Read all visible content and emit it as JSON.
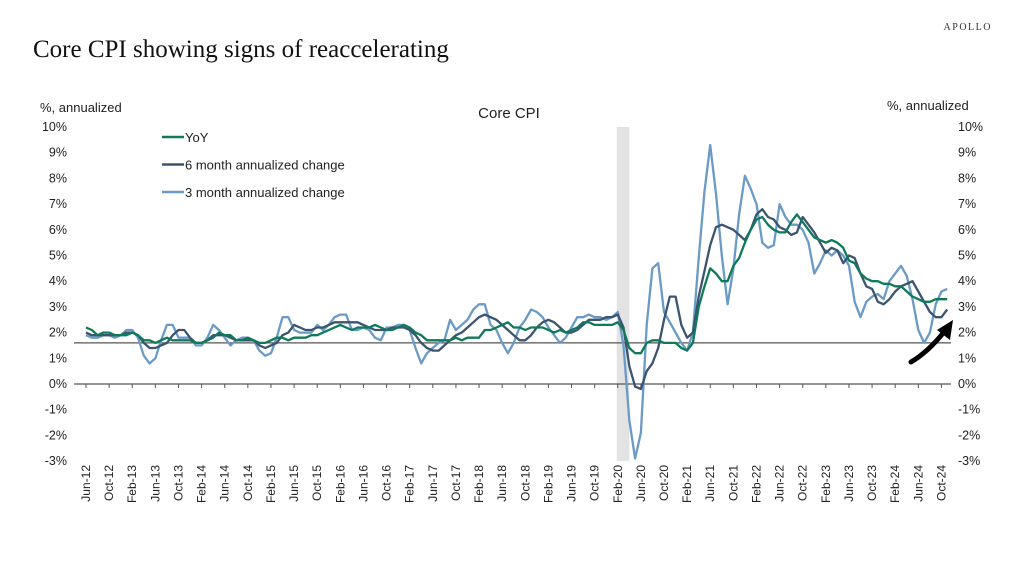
{
  "brand": "APOLLO",
  "page_title": "Core CPI showing signs of reaccelerating",
  "chart_data": {
    "type": "line",
    "title": "Core CPI",
    "ylabel_left": "%, annualized",
    "ylabel_right": "%, annualized",
    "ylim": [
      -3,
      10
    ],
    "yticks": [
      "-3%",
      "-2%",
      "-1%",
      "0%",
      "1%",
      "2%",
      "3%",
      "4%",
      "5%",
      "6%",
      "7%",
      "8%",
      "9%",
      "10%"
    ],
    "x_start": "Jun-12",
    "x_end": "Nov-24",
    "x_frequency": "monthly",
    "xtick_labels": [
      "Jun-12",
      "Oct-12",
      "Feb-13",
      "Jun-13",
      "Oct-13",
      "Feb-14",
      "Jun-14",
      "Oct-14",
      "Feb-15",
      "Jun-15",
      "Oct-15",
      "Feb-16",
      "Jun-16",
      "Oct-16",
      "Feb-17",
      "Jun-17",
      "Oct-17",
      "Feb-18",
      "Jun-18",
      "Oct-18",
      "Feb-19",
      "Jun-19",
      "Oct-19",
      "Feb-20",
      "Jun-20",
      "Oct-20",
      "Feb-21",
      "Jun-21",
      "Oct-21",
      "Feb-22",
      "Jun-22",
      "Oct-22",
      "Feb-23",
      "Jun-23",
      "Oct-23",
      "Feb-24",
      "Jun-24",
      "Oct-24"
    ],
    "legend_placement": "top-left",
    "grid": false,
    "reference_line": 1.6,
    "recession_shading": [
      "Feb-20",
      "Apr-20"
    ],
    "annotation": "upward black arrow near end of series",
    "series": [
      {
        "name": "YoY",
        "color": "#0f7a5a",
        "values": [
          2.2,
          2.1,
          1.9,
          2.0,
          2.0,
          1.9,
          1.9,
          1.9,
          2.0,
          1.9,
          1.7,
          1.7,
          1.6,
          1.7,
          1.8,
          1.7,
          1.7,
          1.7,
          1.7,
          1.6,
          1.6,
          1.7,
          1.8,
          2.0,
          1.9,
          1.9,
          1.7,
          1.7,
          1.8,
          1.7,
          1.6,
          1.6,
          1.7,
          1.8,
          1.8,
          1.7,
          1.8,
          1.8,
          1.8,
          1.9,
          1.9,
          2.0,
          2.1,
          2.2,
          2.3,
          2.2,
          2.1,
          2.2,
          2.2,
          2.2,
          2.3,
          2.2,
          2.1,
          2.1,
          2.2,
          2.3,
          2.2,
          2.0,
          1.9,
          1.7,
          1.7,
          1.7,
          1.7,
          1.7,
          1.8,
          1.7,
          1.8,
          1.8,
          1.8,
          2.1,
          2.1,
          2.2,
          2.3,
          2.4,
          2.2,
          2.2,
          2.1,
          2.2,
          2.2,
          2.2,
          2.1,
          2.0,
          2.1,
          2.0,
          2.1,
          2.2,
          2.4,
          2.4,
          2.3,
          2.3,
          2.3,
          2.3,
          2.4,
          2.1,
          1.4,
          1.2,
          1.2,
          1.6,
          1.7,
          1.7,
          1.6,
          1.6,
          1.6,
          1.4,
          1.3,
          1.6,
          3.0,
          3.8,
          4.5,
          4.3,
          4.0,
          4.0,
          4.6,
          4.9,
          5.5,
          6.0,
          6.4,
          6.5,
          6.2,
          6.0,
          5.9,
          5.9,
          6.3,
          6.6,
          6.3,
          6.0,
          5.7,
          5.6,
          5.5,
          5.6,
          5.5,
          5.3,
          4.8,
          4.7,
          4.3,
          4.1,
          4.0,
          4.0,
          3.9,
          3.9,
          3.8,
          3.8,
          3.6,
          3.4,
          3.3,
          3.2,
          3.2,
          3.3,
          3.3,
          3.3
        ]
      },
      {
        "name": "6 month annualized change",
        "color": "#3b5470",
        "values": [
          2.0,
          1.9,
          1.9,
          1.9,
          1.9,
          1.9,
          1.9,
          2.0,
          2.0,
          1.9,
          1.6,
          1.4,
          1.4,
          1.5,
          1.6,
          1.9,
          2.1,
          2.1,
          1.8,
          1.6,
          1.6,
          1.7,
          1.9,
          1.9,
          1.9,
          1.8,
          1.7,
          1.7,
          1.7,
          1.7,
          1.5,
          1.4,
          1.5,
          1.6,
          1.9,
          2.0,
          2.3,
          2.2,
          2.1,
          2.1,
          2.2,
          2.2,
          2.3,
          2.4,
          2.4,
          2.4,
          2.4,
          2.4,
          2.3,
          2.2,
          2.1,
          2.1,
          2.1,
          2.2,
          2.2,
          2.2,
          2.1,
          1.9,
          1.6,
          1.4,
          1.3,
          1.3,
          1.5,
          1.7,
          1.9,
          2.0,
          2.2,
          2.4,
          2.6,
          2.7,
          2.6,
          2.5,
          2.3,
          2.1,
          1.9,
          1.7,
          1.7,
          1.9,
          2.2,
          2.4,
          2.5,
          2.4,
          2.2,
          2.0,
          2.0,
          2.1,
          2.3,
          2.5,
          2.5,
          2.5,
          2.6,
          2.6,
          2.7,
          2.2,
          0.7,
          -0.1,
          -0.2,
          0.5,
          0.8,
          1.4,
          2.5,
          3.4,
          3.4,
          2.3,
          1.8,
          2.0,
          3.4,
          4.4,
          5.4,
          6.1,
          6.2,
          6.1,
          6.0,
          5.8,
          5.6,
          6.0,
          6.6,
          6.8,
          6.5,
          6.4,
          6.1,
          6.0,
          5.8,
          5.9,
          6.5,
          6.2,
          5.9,
          5.5,
          5.1,
          5.3,
          5.2,
          4.7,
          5.0,
          4.9,
          4.3,
          3.8,
          3.7,
          3.2,
          3.1,
          3.3,
          3.6,
          3.8,
          3.9,
          4.0,
          3.6,
          3.2,
          2.8,
          2.6,
          2.6,
          2.9
        ]
      },
      {
        "name": "3 month annualized change",
        "color": "#6b9ac6",
        "values": [
          1.9,
          1.8,
          1.8,
          1.9,
          1.9,
          1.8,
          1.9,
          2.1,
          2.1,
          1.8,
          1.1,
          0.8,
          1.0,
          1.7,
          2.3,
          2.3,
          1.8,
          1.8,
          1.8,
          1.5,
          1.5,
          1.8,
          2.3,
          2.1,
          1.8,
          1.5,
          1.7,
          1.8,
          1.8,
          1.7,
          1.3,
          1.1,
          1.2,
          1.8,
          2.6,
          2.6,
          2.1,
          2.0,
          2.0,
          2.0,
          2.3,
          2.1,
          2.3,
          2.6,
          2.7,
          2.7,
          2.1,
          2.1,
          2.2,
          2.1,
          1.8,
          1.7,
          2.2,
          2.2,
          2.3,
          2.3,
          2.1,
          1.4,
          0.8,
          1.2,
          1.4,
          1.6,
          1.7,
          2.5,
          2.1,
          2.3,
          2.5,
          2.9,
          3.1,
          3.1,
          2.3,
          2.1,
          1.6,
          1.2,
          1.6,
          2.2,
          2.5,
          2.9,
          2.8,
          2.6,
          2.2,
          1.9,
          1.6,
          1.8,
          2.2,
          2.6,
          2.6,
          2.7,
          2.6,
          2.6,
          2.5,
          2.6,
          2.8,
          1.5,
          -1.4,
          -2.9,
          -1.9,
          2.3,
          4.5,
          4.7,
          2.8,
          2.4,
          2.0,
          1.6,
          1.3,
          2.0,
          4.9,
          7.5,
          9.3,
          7.4,
          5.0,
          3.1,
          4.5,
          6.6,
          8.1,
          7.6,
          7.0,
          5.5,
          5.3,
          5.4,
          7.0,
          6.5,
          6.2,
          6.2,
          6.0,
          5.5,
          4.3,
          4.7,
          5.2,
          5.0,
          5.2,
          5.0,
          4.6,
          3.2,
          2.6,
          3.2,
          3.4,
          3.5,
          3.3,
          4.0,
          4.3,
          4.6,
          4.2,
          3.3,
          2.1,
          1.6,
          2.0,
          3.1,
          3.6,
          3.7
        ]
      }
    ]
  }
}
